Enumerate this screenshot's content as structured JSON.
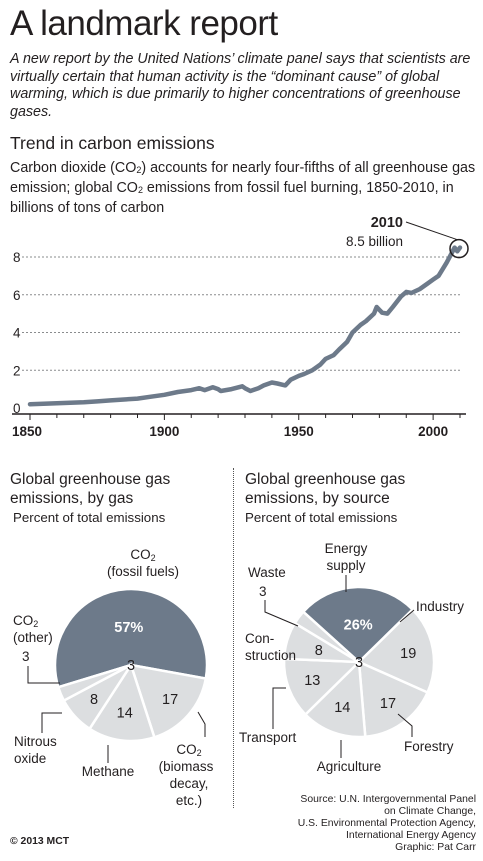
{
  "title": "A landmark report",
  "intro": "A new report by the United Nations’ climate panel says that scientists are virtually certain that human activity is the “dominant cause” of global warming, which is due primarily to higher concentrations of greenhouse gases.",
  "trend": {
    "heading": "Trend in carbon emissions",
    "desc_part1": "Carbon dioxide (CO",
    "desc_sub1": "2",
    "desc_part2": ") accounts for nearly four-fifths of all greenhouse gas emission; global CO",
    "desc_sub2": "2",
    "desc_part3": " emissions from fossil fuel burning, 1850-2010, in billions of tons of carbon",
    "callout_year": "2010",
    "callout_value": "8.5 billion"
  },
  "pie_gas": {
    "heading": "Global greenhouse gas emissions, by gas",
    "subheading": "Percent of total emissions"
  },
  "pie_source": {
    "heading": "Global greenhouse gas emissions, by source",
    "subheading": "Percent of total emissions"
  },
  "source_text": "Source: U.N. Intergovernmental Panel\non Climate Change,\nU.S. Environmental Protection Agency,\nInternational Energy Agency\nGraphic: Pat Carr",
  "copyright": "© 2013 MCT",
  "colors": {
    "dark_slice": "#6d7a8a",
    "light_slice": "#dcdee0",
    "line": "#6d7a8a",
    "text": "#231f20"
  },
  "chart_data": [
    {
      "type": "line",
      "title": "Trend in carbon emissions",
      "ylabel": "billions of tons of carbon",
      "xlim": [
        1850,
        2010
      ],
      "ylim": [
        0,
        9
      ],
      "xticks": [
        1850,
        1900,
        1950,
        2000
      ],
      "yticks": [
        0,
        2,
        4,
        6,
        8
      ],
      "grid": true,
      "x": [
        1850,
        1855,
        1860,
        1865,
        1870,
        1875,
        1880,
        1885,
        1890,
        1895,
        1900,
        1905,
        1910,
        1913,
        1915,
        1918,
        1920,
        1921,
        1925,
        1929,
        1930,
        1932,
        1935,
        1937,
        1940,
        1942,
        1945,
        1947,
        1950,
        1952,
        1955,
        1958,
        1960,
        1963,
        1965,
        1968,
        1970,
        1973,
        1975,
        1978,
        1979,
        1981,
        1983,
        1985,
        1988,
        1990,
        1992,
        1995,
        1998,
        2000,
        2002,
        2005,
        2008,
        2009,
        2010
      ],
      "y": [
        0.2,
        0.22,
        0.25,
        0.28,
        0.3,
        0.35,
        0.4,
        0.45,
        0.5,
        0.6,
        0.7,
        0.85,
        0.95,
        1.05,
        0.95,
        1.1,
        1.0,
        0.9,
        1.0,
        1.15,
        1.05,
        0.9,
        1.05,
        1.2,
        1.35,
        1.3,
        1.2,
        1.5,
        1.7,
        1.8,
        2.0,
        2.3,
        2.6,
        2.8,
        3.1,
        3.5,
        4.0,
        4.4,
        4.6,
        5.0,
        5.35,
        5.05,
        5.0,
        5.35,
        5.9,
        6.15,
        6.1,
        6.3,
        6.6,
        6.8,
        7.0,
        7.7,
        8.5,
        8.3,
        8.5
      ],
      "annotation": {
        "x": 2010,
        "year_label": "2010",
        "value_label": "8.5 billion"
      }
    },
    {
      "type": "pie",
      "title": "Global greenhouse gas emissions, by gas",
      "subtitle": "Percent of total emissions",
      "slices": [
        {
          "label": "CO2 (fossil fuels)",
          "value": 57,
          "value_label": "57%",
          "dark": true
        },
        {
          "label": "CO2 (biomass decay, etc.)",
          "value": 17,
          "value_label": "17"
        },
        {
          "label": "Methane",
          "value": 14,
          "value_label": "14"
        },
        {
          "label": "Nitrous oxide",
          "value": 8,
          "value_label": "8"
        },
        {
          "label": "CO2 (other)",
          "value": 3,
          "value_label": "3"
        }
      ]
    },
    {
      "type": "pie",
      "title": "Global greenhouse gas emissions, by source",
      "subtitle": "Percent of total emissions",
      "slices": [
        {
          "label": "Energy supply",
          "value": 26,
          "value_label": "26%",
          "dark": true
        },
        {
          "label": "Industry",
          "value": 19,
          "value_label": "19"
        },
        {
          "label": "Forestry",
          "value": 17,
          "value_label": "17"
        },
        {
          "label": "Agriculture",
          "value": 14,
          "value_label": "14"
        },
        {
          "label": "Transport",
          "value": 13,
          "value_label": "13"
        },
        {
          "label": "Construction",
          "value": 8,
          "value_label": "8"
        },
        {
          "label": "Waste",
          "value": 3,
          "value_label": "3"
        }
      ]
    }
  ],
  "outer_labels": {
    "gas": {
      "fossil_line1": "CO",
      "fossil_sub": "2",
      "fossil_line2": "(fossil fuels)",
      "other_line1": "CO",
      "other_sub": "2",
      "other_line2": "(other)",
      "other_value": "3",
      "nitrous_line1": "Nitrous",
      "nitrous_line2": "oxide",
      "methane": "Methane",
      "biomass_line1": "CO",
      "biomass_sub": "2",
      "biomass_line2": "(biomass",
      "biomass_line3": "decay,",
      "biomass_line4": "etc.)"
    },
    "source": {
      "energy_line1": "Energy",
      "energy_line2": "supply",
      "waste": "Waste",
      "waste_value": "3",
      "industry": "Industry",
      "construction_line1": "Con-",
      "construction_line2": "struction",
      "transport": "Transport",
      "agriculture": "Agriculture",
      "forestry": "Forestry"
    }
  }
}
